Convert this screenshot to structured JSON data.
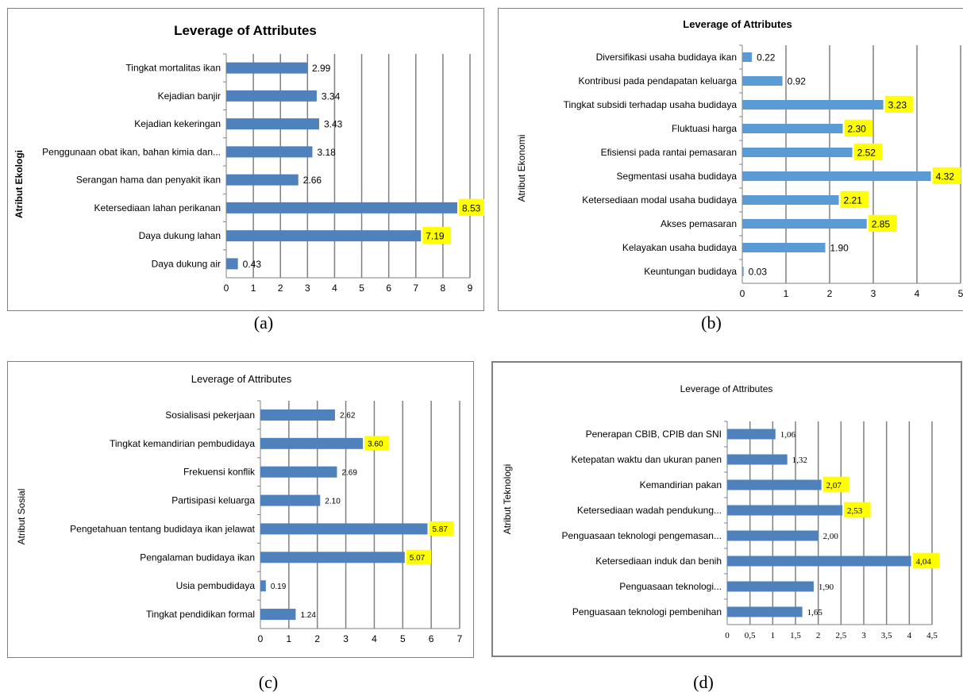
{
  "chart_data": [
    {
      "type": "bar",
      "orientation": "horizontal",
      "title": "Leverage of Attributes",
      "ylabel": "Atribut Ekologi",
      "xlabel": "",
      "caption": "(a)",
      "categories": [
        "Tingkat mortalitas ikan",
        "Kejadian banjir",
        "Kejadian kekeringan",
        "Penggunaan obat ikan, bahan kimia dan...",
        "Serangan hama dan penyakit ikan",
        "Ketersediaan lahan perikanan",
        "Daya dukung lahan",
        "Daya dukung air"
      ],
      "values": [
        2.99,
        3.34,
        3.43,
        3.18,
        2.66,
        8.53,
        7.19,
        0.43
      ],
      "labels": [
        "2.99",
        "3.34",
        "3.43",
        "3.18",
        "2.66",
        "8.53",
        "7.19",
        "0.43"
      ],
      "highlighted": [
        false,
        false,
        false,
        false,
        false,
        true,
        true,
        false
      ],
      "xlim": [
        0,
        9
      ],
      "ticks": [
        0,
        1,
        2,
        3,
        4,
        5,
        6,
        7,
        8,
        9
      ],
      "tick_labels": [
        "0",
        "1",
        "2",
        "3",
        "4",
        "5",
        "6",
        "7",
        "8",
        "9"
      ],
      "vertical_grid": true,
      "bar_color": "#4f81bd",
      "highlight_color": "#ffff00"
    },
    {
      "type": "bar",
      "orientation": "horizontal",
      "title": "Leverage of Attributes",
      "ylabel": "Atribut Ekonomi",
      "xlabel": "",
      "caption": "(b)",
      "categories": [
        "Diversifikasi usaha budidaya ikan",
        "Kontribusi pada pendapatan keluarga",
        "Tingkat subsidi terhadap usaha budidaya",
        "Fluktuasi harga",
        "Efisiensi pada rantai pemasaran",
        "Segmentasi usaha budidaya",
        "Ketersediaan modal usaha budidaya",
        "Akses pemasaran",
        "Kelayakan usaha budidaya",
        "Keuntungan budidaya"
      ],
      "values": [
        0.22,
        0.92,
        3.23,
        2.3,
        2.52,
        4.32,
        2.21,
        2.85,
        1.9,
        0.03
      ],
      "labels": [
        "0.22",
        "0.92",
        "3.23",
        "2.30",
        "2.52",
        "4.32",
        "2.21",
        "2.85",
        "1.90",
        "0.03"
      ],
      "highlighted": [
        false,
        false,
        true,
        true,
        true,
        true,
        true,
        true,
        false,
        false
      ],
      "xlim": [
        0,
        5
      ],
      "ticks": [
        0,
        1,
        2,
        3,
        4,
        5
      ],
      "tick_labels": [
        "0",
        "1",
        "2",
        "3",
        "4",
        "5"
      ],
      "vertical_grid": true,
      "bar_color": "#5b9bd5",
      "highlight_color": "#ffff00"
    },
    {
      "type": "bar",
      "orientation": "horizontal",
      "title": "Leverage of Attributes",
      "ylabel": "Atribut Sosial",
      "xlabel": "",
      "caption": "(c)",
      "categories": [
        "Sosialisasi pekerjaan",
        "Tingkat kemandirian pembudidaya",
        "Frekuensi konflik",
        "Partisipasi keluarga",
        "Pengetahuan tentang budidaya ikan jelawat",
        "Pengalaman budidaya ikan",
        "Usia pembudidaya",
        "Tingkat pendidikan formal"
      ],
      "values": [
        2.62,
        3.6,
        2.69,
        2.1,
        5.87,
        5.07,
        0.19,
        1.24
      ],
      "labels": [
        "2.62",
        "3.60",
        "2.69",
        "2.10",
        "5.87",
        "5.07",
        "0.19",
        "1.24"
      ],
      "highlighted": [
        false,
        true,
        false,
        false,
        true,
        true,
        false,
        false
      ],
      "xlim": [
        0,
        7
      ],
      "ticks": [
        0,
        1,
        2,
        3,
        4,
        5,
        6,
        7
      ],
      "tick_labels": [
        "0",
        "1",
        "2",
        "3",
        "4",
        "5",
        "6",
        "7"
      ],
      "vertical_grid": true,
      "bar_color": "#4f81bd",
      "highlight_color": "#ffff00"
    },
    {
      "type": "bar",
      "orientation": "horizontal",
      "title": "Leverage of Attributes",
      "ylabel": "Atribut Teknologi",
      "xlabel": "",
      "caption": "(d)",
      "categories": [
        "Penerapan CBIB, CPIB dan SNI",
        "Ketepatan waktu dan ukuran panen",
        "Kemandirian pakan",
        "Ketersediaan wadah pendukung...",
        "Penguasaan teknologi pengemasan...",
        "Ketersediaan induk dan benih",
        "Penguasaan teknologi...",
        "Penguasaan teknologi pembenihan"
      ],
      "values": [
        1.06,
        1.32,
        2.07,
        2.53,
        2.0,
        4.04,
        1.9,
        1.65
      ],
      "labels": [
        "1,06",
        "1,32",
        "2,07",
        "2,53",
        "2,00",
        "4,04",
        "1,90",
        "1,65"
      ],
      "highlighted": [
        false,
        false,
        true,
        true,
        false,
        true,
        false,
        false
      ],
      "xlim": [
        0,
        4.5
      ],
      "ticks": [
        0,
        0.5,
        1,
        1.5,
        2,
        2.5,
        3,
        3.5,
        4,
        4.5
      ],
      "tick_labels": [
        "0",
        "0,5",
        "1",
        "1,5",
        "2",
        "2,5",
        "3",
        "3,5",
        "4",
        "4,5"
      ],
      "vertical_grid": true,
      "bar_color": "#4f81bd",
      "highlight_color": "#ffff00"
    }
  ]
}
